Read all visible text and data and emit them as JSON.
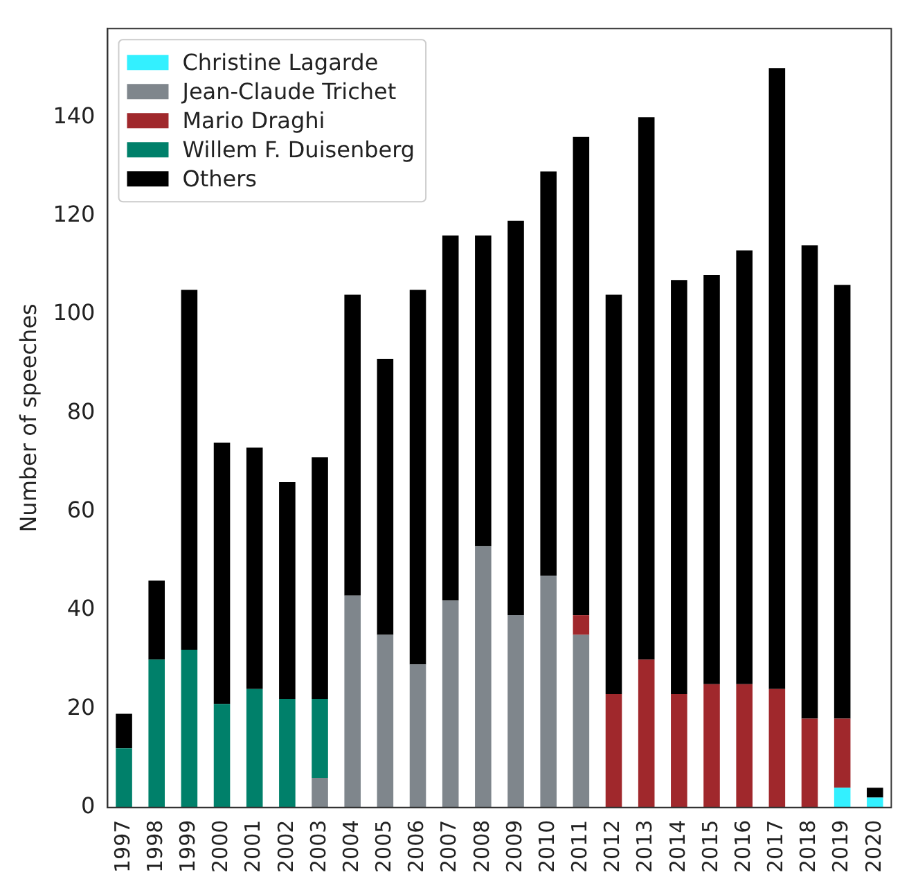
{
  "chart_data": {
    "type": "bar",
    "ylabel": "Number of speeches",
    "stacked": true,
    "categories": [
      "1997",
      "1998",
      "1999",
      "2000",
      "2001",
      "2002",
      "2003",
      "2004",
      "2005",
      "2006",
      "2007",
      "2008",
      "2009",
      "2010",
      "2011",
      "2012",
      "2013",
      "2014",
      "2015",
      "2016",
      "2017",
      "2018",
      "2019",
      "2020"
    ],
    "series": [
      {
        "name": "Christine Lagarde",
        "color": "#33f0ff",
        "values": [
          0,
          0,
          0,
          0,
          0,
          0,
          0,
          0,
          0,
          0,
          0,
          0,
          0,
          0,
          0,
          0,
          0,
          0,
          0,
          0,
          0,
          0,
          4,
          2
        ]
      },
      {
        "name": "Jean-Claude Trichet",
        "color": "#7f868c",
        "values": [
          0,
          0,
          0,
          0,
          0,
          0,
          6,
          43,
          35,
          29,
          42,
          53,
          39,
          47,
          35,
          0,
          0,
          0,
          0,
          0,
          0,
          0,
          0,
          0
        ]
      },
      {
        "name": "Mario Draghi",
        "color": "#a0282c",
        "values": [
          0,
          0,
          0,
          0,
          0,
          0,
          0,
          0,
          0,
          0,
          0,
          0,
          0,
          0,
          4,
          23,
          30,
          23,
          25,
          25,
          24,
          18,
          14,
          0
        ]
      },
      {
        "name": "Willem F. Duisenberg",
        "color": "#00806a",
        "values": [
          12,
          30,
          32,
          21,
          24,
          22,
          16,
          0,
          0,
          0,
          0,
          0,
          0,
          0,
          0,
          0,
          0,
          0,
          0,
          0,
          0,
          0,
          0,
          0
        ]
      },
      {
        "name": "Others",
        "color": "#000000",
        "values": [
          7,
          16,
          73,
          53,
          49,
          44,
          49,
          61,
          56,
          76,
          74,
          63,
          80,
          82,
          97,
          81,
          110,
          84,
          83,
          88,
          126,
          96,
          88,
          2
        ]
      }
    ],
    "ylim": [
      0,
      158
    ],
    "yticks": [
      0,
      20,
      40,
      60,
      80,
      100,
      120,
      140
    ],
    "grid": false,
    "legend": "top left"
  }
}
